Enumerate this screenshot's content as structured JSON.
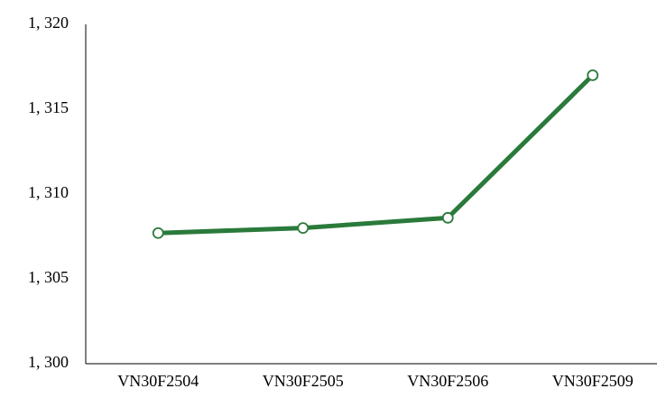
{
  "chart_data": {
    "type": "line",
    "categories": [
      "VN30F2504",
      "VN30F2505",
      "VN30F2506",
      "VN30F2509"
    ],
    "values": [
      1307.7,
      1308.0,
      1308.6,
      1317.0
    ],
    "color": "#2a7a3b",
    "ylim": [
      1300,
      1320
    ],
    "yticks": [
      {
        "value": 1300,
        "label": "1, 300"
      },
      {
        "value": 1305,
        "label": "1, 305"
      },
      {
        "value": 1310,
        "label": "1, 310"
      },
      {
        "value": 1315,
        "label": "1, 315"
      },
      {
        "value": 1320,
        "label": "1, 320"
      }
    ],
    "grid": false
  }
}
